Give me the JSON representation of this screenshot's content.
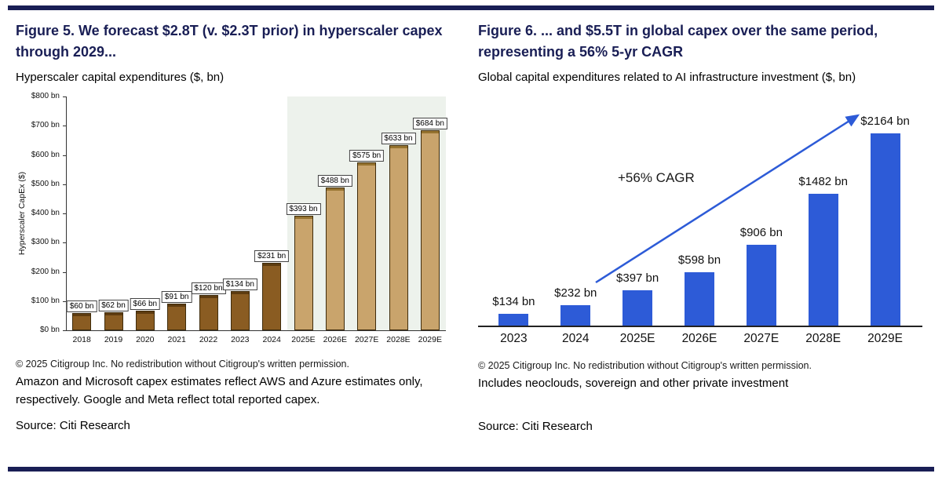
{
  "theme": {
    "navy": "#191e55",
    "text": "#111111"
  },
  "left_panel": {
    "title": "Figure 5. We forecast $2.8T (v. $2.3T prior) in hyperscaler capex through 2029...",
    "subtitle": "Hyperscaler capital expenditures ($, bn)",
    "copyright": "© 2025 Citigroup Inc. No redistribution without Citigroup's written permission.",
    "note": "Amazon and Microsoft capex estimates reflect AWS and Azure estimates only, respectively. Google and Meta reflect total reported capex.",
    "source": "Source: Citi Research"
  },
  "right_panel": {
    "title": "Figure 6. ... and $5.5T in global capex over the same period, representing a 56% 5-yr CAGR",
    "subtitle": "Global capital expenditures related to AI infrastructure investment ($, bn)",
    "copyright": "© 2025 Citigroup Inc. No redistribution without Citigroup's written permission.",
    "note": "Includes neoclouds, sovereign and other private investment",
    "source": "Source: Citi Research"
  },
  "chart_data": [
    {
      "type": "bar",
      "title": "Hyperscaler capital expenditures ($, bn)",
      "xlabel": "",
      "ylabel": "Hyperscaler CapEx ($)",
      "ylim": [
        0,
        800
      ],
      "ytick_step": 100,
      "ytick_labels": [
        "$0 bn",
        "$100 bn",
        "$200 bn",
        "$300 bn",
        "$400 bn",
        "$500 bn",
        "$600 bn",
        "$700 bn",
        "$800 bn"
      ],
      "categories": [
        "2018",
        "2019",
        "2020",
        "2021",
        "2022",
        "2023",
        "2024",
        "2025E",
        "2026E",
        "2027E",
        "2028E",
        "2029E"
      ],
      "values": [
        60,
        62,
        66,
        91,
        120,
        134,
        231,
        393,
        488,
        575,
        633,
        684
      ],
      "bar_labels": [
        "$60 bn",
        "$62 bn",
        "$66 bn",
        "$91 bn",
        "$120 bn",
        "$134 bn",
        "$231 bn",
        "$393 bn",
        "$488 bn",
        "$575 bn",
        "$633 bn",
        "$684 bn"
      ],
      "estimate_start_index": 7,
      "historical_color": "#8a5c22",
      "historical_top_color": "#5e3c10",
      "estimate_color": "#c9a46c",
      "estimate_top_color": "#96732f",
      "bar_border_color": "#3f2c0c",
      "forecast_band_color": "#edf2ec",
      "grid": false,
      "legend": "none"
    },
    {
      "type": "bar",
      "title": "Global capital expenditures related to AI infrastructure investment ($, bn)",
      "xlabel": "",
      "ylabel": "",
      "ylim": [
        0,
        2400
      ],
      "categories": [
        "2023",
        "2024",
        "2025E",
        "2026E",
        "2027E",
        "2028E",
        "2029E"
      ],
      "values": [
        134,
        232,
        397,
        598,
        906,
        1482,
        2164
      ],
      "bar_labels": [
        "$134 bn",
        "$232 bn",
        "$397 bn",
        "$598 bn",
        "$906 bn",
        "$1482 bn",
        "$2164 bn"
      ],
      "bar_color": "#2d5bd7",
      "annotation": "+56% CAGR",
      "arrow_color": "#2d5bd7",
      "grid": false,
      "legend": "none"
    }
  ]
}
